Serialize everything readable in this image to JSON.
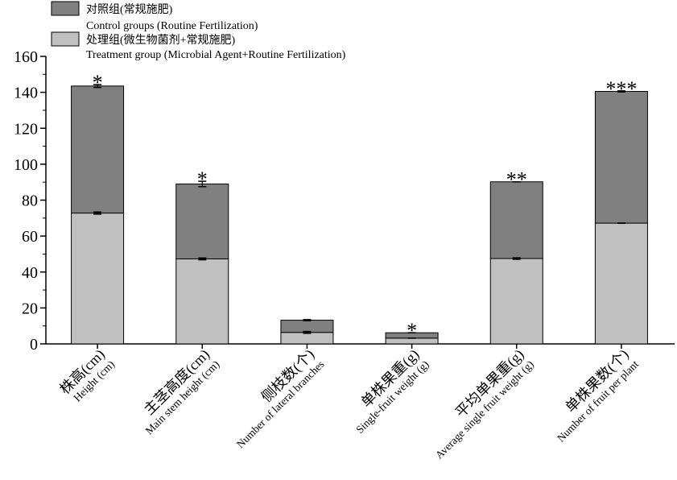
{
  "chart_data": {
    "type": "bar",
    "stacked": true,
    "title": "",
    "xlabel": "",
    "ylabel": "",
    "ylim": [
      0,
      160
    ],
    "yticks": [
      0,
      20,
      40,
      60,
      80,
      100,
      120,
      140,
      160
    ],
    "grid": false,
    "legend_position": "top-left",
    "categories": [
      {
        "cn": "株高(cm)",
        "en": "Height (cm)"
      },
      {
        "cn": "主茎高度(cm)",
        "en": "Main stem height (cm)"
      },
      {
        "cn": "侧枝数(个)",
        "en": "Number of lateral branches"
      },
      {
        "cn": "单株果重(g)",
        "en": "Single-fruit weight (g)"
      },
      {
        "cn": "平均单果重(g)",
        "en": "Average single fruit weight (g)"
      },
      {
        "cn": "单株果数(个)",
        "en": "Number of fruit per plant"
      }
    ],
    "series": [
      {
        "name_cn": "处理组(微生物菌剂+常规施肥)",
        "name_en": "Treatment group (Microbial Agent+Routine Fertilization)",
        "color": "#c0c0c0",
        "values": [
          72.8,
          47.3,
          6.4,
          3.2,
          47.5,
          67.2
        ],
        "errors": [
          0.6,
          0.5,
          0.5,
          0,
          0.4,
          0
        ]
      },
      {
        "name_cn": "对照组(常规施肥)",
        "name_en": "Control groups (Routine Fertilization)",
        "color": "#808080",
        "values": [
          70.7,
          41.7,
          6.8,
          3.0,
          42.7,
          73.3
        ],
        "totals": [
          143.5,
          89.0,
          13.2,
          6.2,
          90.2,
          140.5
        ],
        "errors": [
          0.8,
          1.5,
          0.3,
          0,
          0,
          0.3
        ]
      }
    ],
    "significance": [
      "*",
      "*",
      "",
      "*",
      "**",
      "***"
    ]
  }
}
